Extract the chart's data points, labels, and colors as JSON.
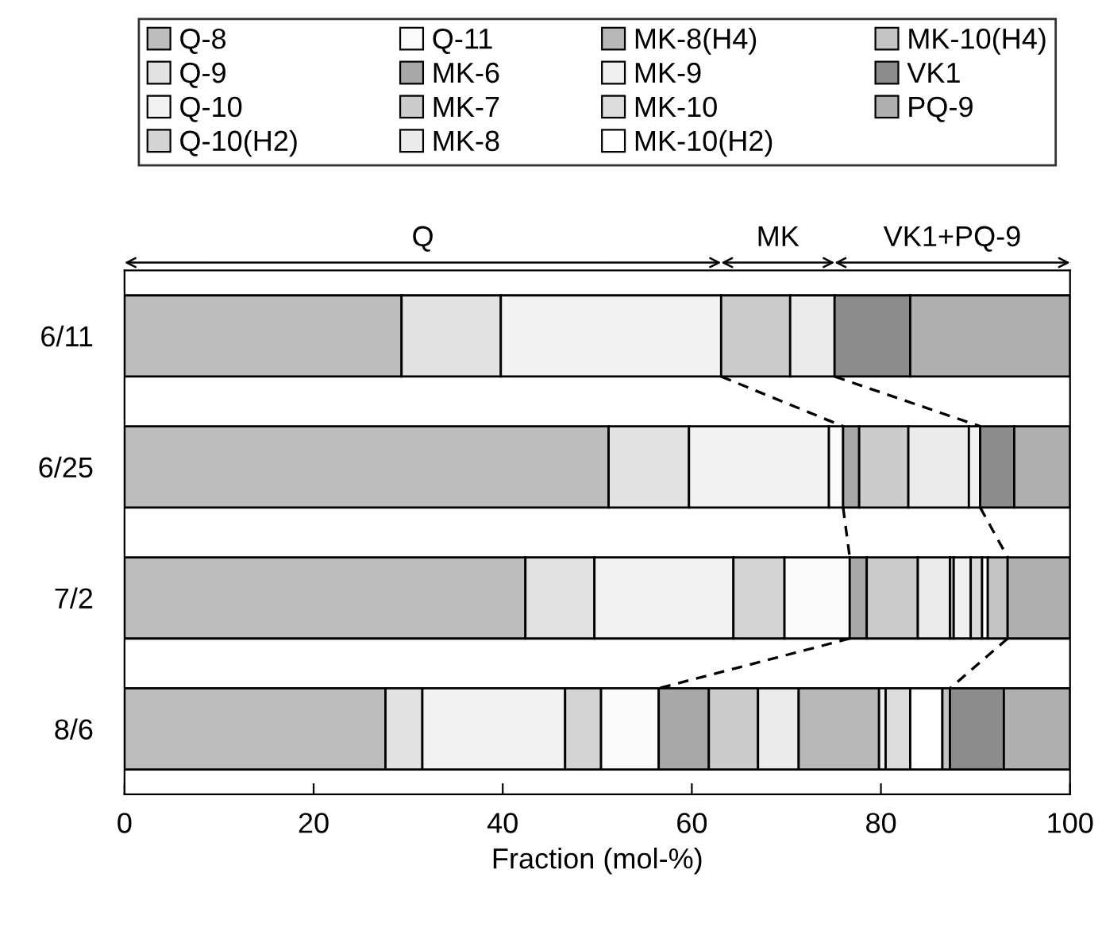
{
  "chart_data": {
    "type": "bar",
    "orientation": "horizontal",
    "stacked": true,
    "xlabel": "Fraction (mol-%)",
    "xlim": [
      0,
      100
    ],
    "xticks": [
      0,
      20,
      40,
      60,
      80,
      100
    ],
    "legend": "top",
    "grid": false,
    "categories": [
      "6/11",
      "6/25",
      "7/2",
      "8/6"
    ],
    "series": [
      {
        "name": "Q-8",
        "color": "#bdbdbd",
        "values": [
          29.3,
          51.2,
          42.4,
          27.6
        ]
      },
      {
        "name": "Q-9",
        "color": "#e2e2e2",
        "values": [
          10.5,
          8.5,
          7.3,
          3.9
        ]
      },
      {
        "name": "Q-10",
        "color": "#f2f2f2",
        "values": [
          23.3,
          14.8,
          14.7,
          15.1
        ]
      },
      {
        "name": "Q-10(H2)",
        "color": "#d4d4d4",
        "values": [
          null,
          null,
          5.4,
          3.8
        ]
      },
      {
        "name": "Q-11",
        "color": "#fafafa",
        "values": [
          null,
          1.5,
          6.9,
          6.1
        ]
      },
      {
        "name": "MK-6",
        "color": "#a8a8a8",
        "values": [
          null,
          1.7,
          1.8,
          5.3
        ]
      },
      {
        "name": "MK-7",
        "color": "#cccccc",
        "values": [
          7.3,
          5.2,
          5.4,
          5.2
        ]
      },
      {
        "name": "MK-8",
        "color": "#ebebeb",
        "values": [
          4.7,
          6.4,
          3.4,
          4.3
        ]
      },
      {
        "name": "MK-8(H4)",
        "color": "#b8b8b8",
        "values": [
          null,
          null,
          0.4,
          8.5
        ]
      },
      {
        "name": "MK-9",
        "color": "#f0f0f0",
        "values": [
          null,
          1.2,
          1.8,
          0.7
        ]
      },
      {
        "name": "MK-10",
        "color": "#dcdcdc",
        "values": [
          null,
          null,
          1.2,
          2.6
        ]
      },
      {
        "name": "MK-10(H2)",
        "color": "#ffffff",
        "values": [
          null,
          null,
          0.6,
          3.4
        ]
      },
      {
        "name": "MK-10(H4)",
        "color": "#c4c4c4",
        "values": [
          null,
          null,
          2.1,
          0.8
        ]
      },
      {
        "name": "VK1",
        "color": "#8c8c8c",
        "values": [
          8.0,
          3.6,
          null,
          5.7
        ]
      },
      {
        "name": "PQ-9",
        "color": "#b0b0b0",
        "values": [
          16.9,
          5.9,
          6.6,
          7.0
        ]
      }
    ],
    "annotations": [
      "Q",
      "MK",
      "VK1+PQ-9"
    ]
  }
}
